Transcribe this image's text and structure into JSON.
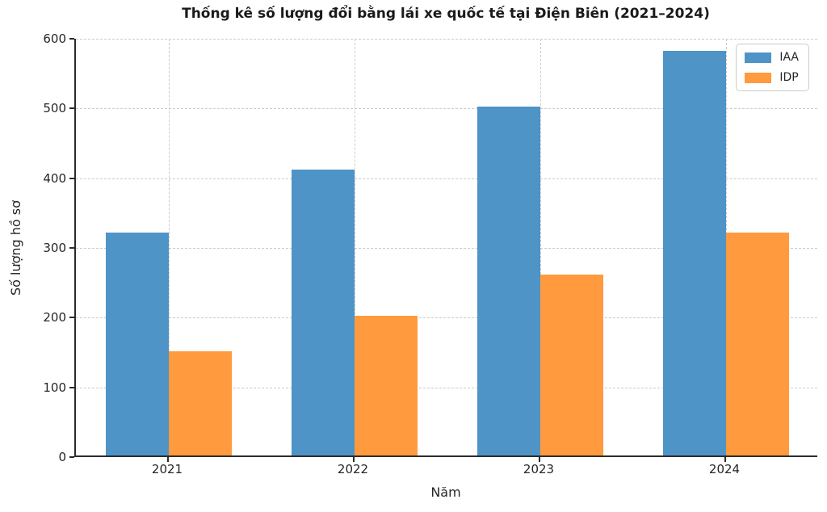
{
  "chart_data": {
    "type": "bar",
    "title": "Thống kê số lượng đổi bằng lái xe quốc tế tại Điện Biên (2021–2024)",
    "xlabel": "Năm",
    "ylabel": "Số lượng hồ sơ",
    "categories": [
      "2021",
      "2022",
      "2023",
      "2024"
    ],
    "series": [
      {
        "name": "IAA",
        "color": "#4E94C7",
        "values": [
          320,
          410,
          500,
          580
        ]
      },
      {
        "name": "IDP",
        "color": "#FF9A3E",
        "values": [
          150,
          200,
          260,
          320
        ]
      }
    ],
    "ylim": [
      0,
      600
    ],
    "yticks": [
      0,
      100,
      200,
      300,
      400,
      500,
      600
    ],
    "grid": true,
    "grid_style": "dashed",
    "grid_color": "#cccccc",
    "legend_position": "upper right",
    "spine_color": "#2b2b2b",
    "background_color": "#ffffff"
  }
}
